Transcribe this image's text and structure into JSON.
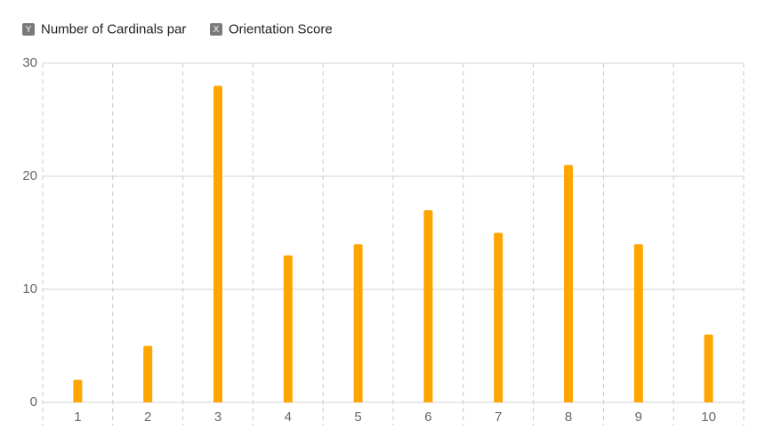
{
  "chart_data": {
    "type": "bar",
    "y_badge": "Y",
    "y_label": "Number of Cardinals par",
    "x_badge": "X",
    "x_label": "Orientation Score",
    "categories": [
      "1",
      "2",
      "3",
      "4",
      "5",
      "6",
      "7",
      "8",
      "9",
      "10"
    ],
    "values": [
      2,
      5,
      28,
      13,
      14,
      17,
      15,
      21,
      14,
      6
    ],
    "color": "#ffa500",
    "ylim": [
      0,
      30
    ],
    "yticks": [
      0,
      10,
      20,
      30
    ],
    "grid": true
  }
}
